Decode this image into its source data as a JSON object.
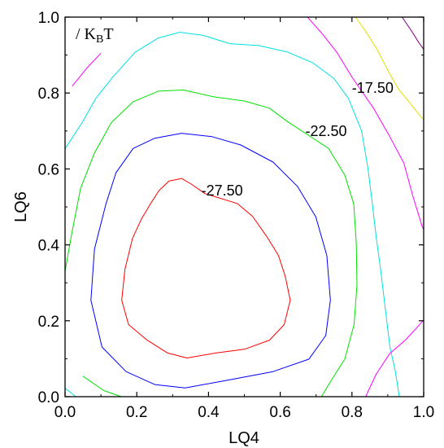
{
  "chart_data": {
    "type": "contour",
    "xlabel": "LQ4",
    "ylabel": "LQ6",
    "xlim": [
      0.0,
      1.0
    ],
    "ylim": [
      0.0,
      1.0
    ],
    "x_ticks": [
      "0.0",
      "0.2",
      "0.4",
      "0.6",
      "0.8",
      "1.0"
    ],
    "y_ticks": [
      "0.0",
      "0.2",
      "0.4",
      "0.6",
      "0.8",
      "1.0"
    ],
    "unit_label": {
      "prefix": "/ K",
      "sub": "B",
      "suffix": "T"
    },
    "grid": false,
    "contours": [
      {
        "level": -27.5,
        "label": "-27.50",
        "labeled": true,
        "color": "#ff0000",
        "label_at": [
          0.38,
          0.53
        ],
        "points": [
          [
            0.238,
            0.508
          ],
          [
            0.262,
            0.543
          ],
          [
            0.29,
            0.568
          ],
          [
            0.325,
            0.575
          ],
          [
            0.352,
            0.56
          ],
          [
            0.39,
            0.535
          ],
          [
            0.48,
            0.509
          ],
          [
            0.523,
            0.475
          ],
          [
            0.566,
            0.417
          ],
          [
            0.595,
            0.372
          ],
          [
            0.614,
            0.317
          ],
          [
            0.628,
            0.254
          ],
          [
            0.611,
            0.19
          ],
          [
            0.57,
            0.149
          ],
          [
            0.5,
            0.125
          ],
          [
            0.42,
            0.115
          ],
          [
            0.34,
            0.102
          ],
          [
            0.286,
            0.115
          ],
          [
            0.229,
            0.149
          ],
          [
            0.177,
            0.19
          ],
          [
            0.158,
            0.254
          ],
          [
            0.167,
            0.335
          ],
          [
            0.188,
            0.417
          ],
          [
            0.212,
            0.466
          ],
          [
            0.238,
            0.508
          ]
        ]
      },
      {
        "level": -25.0,
        "label": "",
        "labeled": false,
        "color": "#0000ff",
        "points": [
          [
            0.114,
            0.508
          ],
          [
            0.142,
            0.59
          ],
          [
            0.19,
            0.654
          ],
          [
            0.25,
            0.681
          ],
          [
            0.325,
            0.694
          ],
          [
            0.41,
            0.685
          ],
          [
            0.49,
            0.663
          ],
          [
            0.58,
            0.618
          ],
          [
            0.648,
            0.554
          ],
          [
            0.699,
            0.474
          ],
          [
            0.73,
            0.372
          ],
          [
            0.74,
            0.254
          ],
          [
            0.727,
            0.161
          ],
          [
            0.68,
            0.099
          ],
          [
            0.58,
            0.066
          ],
          [
            0.45,
            0.043
          ],
          [
            0.335,
            0.023
          ],
          [
            0.25,
            0.032
          ],
          [
            0.17,
            0.066
          ],
          [
            0.103,
            0.131
          ],
          [
            0.072,
            0.254
          ],
          [
            0.082,
            0.389
          ],
          [
            0.114,
            0.508
          ]
        ]
      },
      {
        "level": -22.5,
        "label": "-22.50",
        "labeled": true,
        "color": "#00e000",
        "label_at": [
          0.67,
          0.687
        ],
        "points": [
          [
            0.0,
            0.33
          ],
          [
            0.018,
            0.426
          ],
          [
            0.043,
            0.548
          ],
          [
            0.081,
            0.64
          ],
          [
            0.129,
            0.722
          ],
          [
            0.19,
            0.777
          ],
          [
            0.26,
            0.805
          ],
          [
            0.33,
            0.808
          ],
          [
            0.415,
            0.79
          ],
          [
            0.5,
            0.779
          ],
          [
            0.57,
            0.76
          ],
          [
            0.62,
            0.725
          ],
          [
            0.735,
            0.654
          ],
          [
            0.78,
            0.584
          ],
          [
            0.805,
            0.508
          ],
          [
            0.812,
            0.405
          ],
          [
            0.814,
            0.295
          ],
          [
            0.806,
            0.19
          ],
          [
            0.78,
            0.099
          ],
          [
            0.743,
            0.044
          ],
          [
            0.715,
            0.0
          ]
        ]
      },
      {
        "level": -22.5,
        "label": "",
        "labeled": false,
        "color": "#00e000",
        "points": [
          [
            0.05,
            0.054
          ],
          [
            0.108,
            0.016
          ],
          [
            0.157,
            0.0
          ]
        ]
      },
      {
        "level": -20.0,
        "label": "",
        "labeled": false,
        "color": "#00e0e0",
        "points": [
          [
            0.0,
            0.653
          ],
          [
            0.048,
            0.723
          ],
          [
            0.086,
            0.786
          ],
          [
            0.133,
            0.842
          ],
          [
            0.195,
            0.907
          ],
          [
            0.26,
            0.945
          ],
          [
            0.32,
            0.96
          ],
          [
            0.385,
            0.952
          ],
          [
            0.46,
            0.93
          ],
          [
            0.54,
            0.925
          ],
          [
            0.62,
            0.908
          ],
          [
            0.69,
            0.88
          ],
          [
            0.75,
            0.838
          ],
          [
            0.79,
            0.786
          ],
          [
            0.827,
            0.7
          ],
          [
            0.845,
            0.6
          ],
          [
            0.857,
            0.508
          ],
          [
            0.868,
            0.417
          ],
          [
            0.88,
            0.335
          ],
          [
            0.893,
            0.232
          ],
          [
            0.906,
            0.131
          ],
          [
            0.921,
            0.066
          ],
          [
            0.932,
            0.0
          ]
        ]
      },
      {
        "level": -20.0,
        "label": "",
        "labeled": false,
        "color": "#00e0e0",
        "points": [
          [
            0.0,
            0.022
          ],
          [
            0.014,
            0.012
          ],
          [
            0.03,
            0.0
          ]
        ]
      },
      {
        "level": -17.5,
        "label": "-17.50",
        "labeled": true,
        "color": "#ff00ff",
        "label_at": [
          0.8,
          0.8
        ],
        "points": [
          [
            0.676,
            1.0
          ],
          [
            0.72,
            0.953
          ],
          [
            0.758,
            0.907
          ],
          [
            0.8,
            0.842
          ],
          [
            0.86,
            0.76
          ],
          [
            0.905,
            0.686
          ],
          [
            0.945,
            0.615
          ],
          [
            0.97,
            0.528
          ],
          [
            0.996,
            0.448
          ],
          [
            1.0,
            0.44
          ]
        ]
      },
      {
        "level": -17.5,
        "label": "",
        "labeled": false,
        "color": "#ff00ff",
        "points": [
          [
            0.02,
            0.818
          ],
          [
            0.06,
            0.865
          ],
          [
            0.1,
            0.905
          ]
        ]
      },
      {
        "level": -17.5,
        "label": "",
        "labeled": false,
        "color": "#ff00ff",
        "points": [
          [
            0.838,
            0.0
          ],
          [
            0.868,
            0.06
          ],
          [
            0.905,
            0.113
          ],
          [
            0.95,
            0.15
          ],
          [
            0.985,
            0.186
          ],
          [
            1.0,
            0.202
          ]
        ]
      },
      {
        "level": -15.0,
        "label": "",
        "labeled": false,
        "color": "#e0e000",
        "points": [
          [
            0.81,
            1.0
          ],
          [
            0.84,
            0.96
          ],
          [
            0.87,
            0.915
          ],
          [
            0.9,
            0.86
          ],
          [
            0.93,
            0.81
          ],
          [
            0.965,
            0.77
          ],
          [
            0.99,
            0.74
          ],
          [
            1.0,
            0.73
          ]
        ]
      },
      {
        "level": -12.5,
        "label": "",
        "labeled": false,
        "color": "#800080",
        "points": [
          [
            0.94,
            1.0
          ],
          [
            0.965,
            0.965
          ],
          [
            0.985,
            0.935
          ],
          [
            1.0,
            0.915
          ]
        ]
      }
    ]
  }
}
